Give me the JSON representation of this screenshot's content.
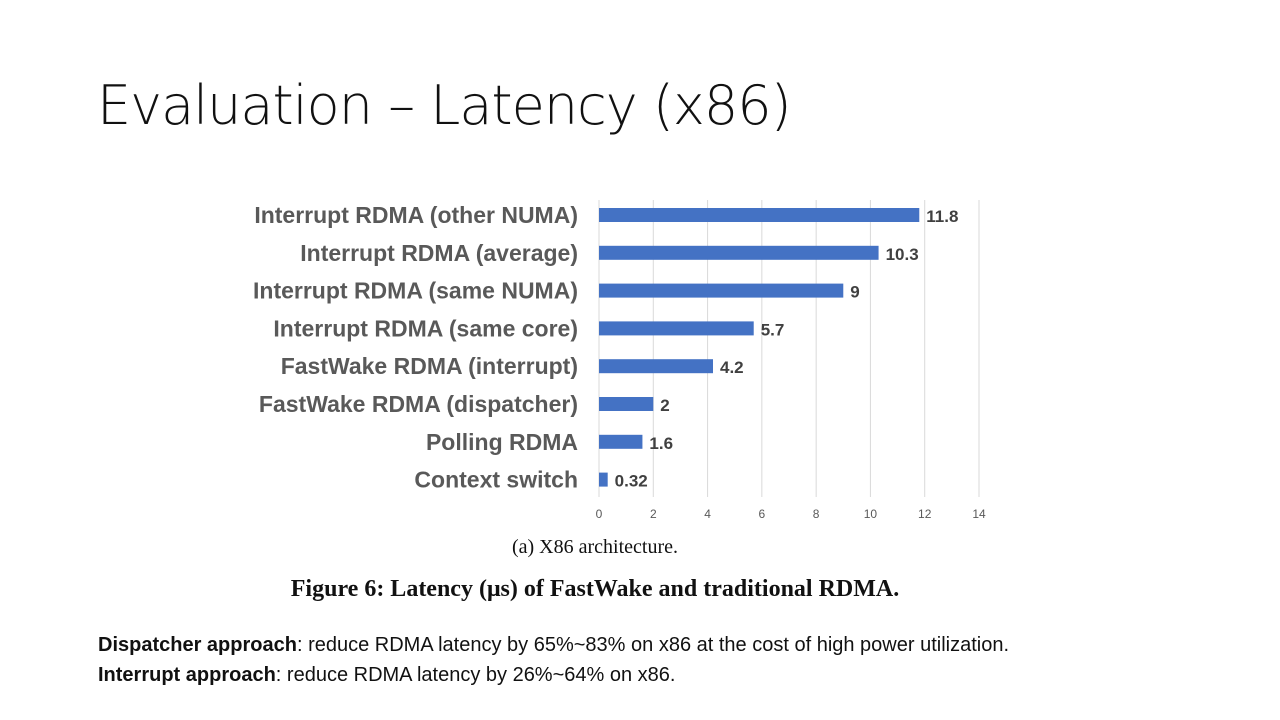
{
  "slide": {
    "title": "Evaluation – Latency (x86)",
    "subcaption": "(a)  X86 architecture.",
    "figure_caption": "Figure 6: Latency (μs) of FastWake and traditional RDMA.",
    "notes": [
      {
        "bold": "Dispatcher approach",
        "text": ": reduce RDMA latency by 65%~83% on x86 at the cost of high power utilization."
      },
      {
        "bold": "Interrupt approach",
        "text": ": reduce RDMA latency by 26%~64% on x86."
      }
    ]
  },
  "chart_data": {
    "type": "bar",
    "orientation": "horizontal",
    "categories": [
      "Interrupt RDMA (other NUMA)",
      "Interrupt RDMA (average)",
      "Interrupt RDMA (same NUMA)",
      "Interrupt RDMA (same core)",
      "FastWake RDMA (interrupt)",
      "FastWake RDMA (dispatcher)",
      "Polling RDMA",
      "Context switch"
    ],
    "values": [
      11.8,
      10.3,
      9,
      5.7,
      4.2,
      2,
      1.6,
      0.32
    ],
    "data_labels": [
      "11.8",
      "10.3",
      "9",
      "5.7",
      "4.2",
      "2",
      "1.6",
      "0.32"
    ],
    "xlim": [
      0,
      14
    ],
    "xticks": [
      "0",
      "2",
      "4",
      "6",
      "8",
      "10",
      "12",
      "14"
    ],
    "grid": true,
    "bar_color": "#4472C4",
    "title": "",
    "xlabel": "",
    "ylabel": ""
  }
}
